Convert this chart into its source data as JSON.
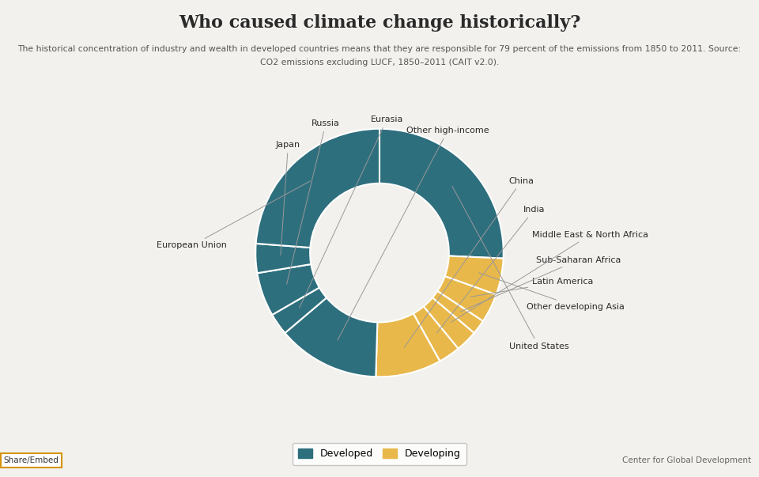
{
  "title": "Who caused climate change historically?",
  "subtitle_line1": "The historical concentration of industry and wealth in developed countries means that they are responsible for 79 percent of the emissions from 1850 to 2011. Source:",
  "subtitle_line2": "CO2 emissions excluding LUCF, 1850–2011 (CAIT v2.0).",
  "labels": [
    "United States",
    "Other developing Asia",
    "Latin America",
    "Sub-Saharan Africa",
    "Middle East & North Africa",
    "India",
    "China",
    "Other high-income",
    "Eurasia",
    "Russia",
    "Japan",
    "European Union"
  ],
  "values": [
    27,
    5,
    4,
    2,
    3,
    3,
    9,
    14,
    3,
    6,
    4,
    25
  ],
  "colors": [
    "#2e6f7e",
    "#e8b84b",
    "#e8b84b",
    "#e8b84b",
    "#e8b84b",
    "#e8b84b",
    "#e8b84b",
    "#2e6f7e",
    "#2e6f7e",
    "#2e6f7e",
    "#2e6f7e",
    "#2e6f7e"
  ],
  "developed_color": "#2e6f7e",
  "developing_color": "#e8b84b",
  "background_color": "#f2f1ed",
  "text_color": "#2a2a2a",
  "label_color": "#2a2a2a",
  "label_positions": {
    "United States": [
      0.72,
      -0.52,
      "left"
    ],
    "Other developing Asia": [
      0.82,
      -0.3,
      "left"
    ],
    "Latin America": [
      0.85,
      -0.16,
      "left"
    ],
    "Sub-Saharan Africa": [
      0.87,
      -0.04,
      "left"
    ],
    "Middle East & North Africa": [
      0.85,
      0.1,
      "left"
    ],
    "India": [
      0.8,
      0.24,
      "left"
    ],
    "China": [
      0.72,
      0.4,
      "left"
    ],
    "Other high-income": [
      0.38,
      0.68,
      "center"
    ],
    "Eurasia": [
      0.04,
      0.74,
      "center"
    ],
    "Russia": [
      -0.22,
      0.72,
      "right"
    ],
    "Japan": [
      -0.44,
      0.6,
      "right"
    ],
    "European Union": [
      -0.85,
      0.04,
      "right"
    ]
  }
}
